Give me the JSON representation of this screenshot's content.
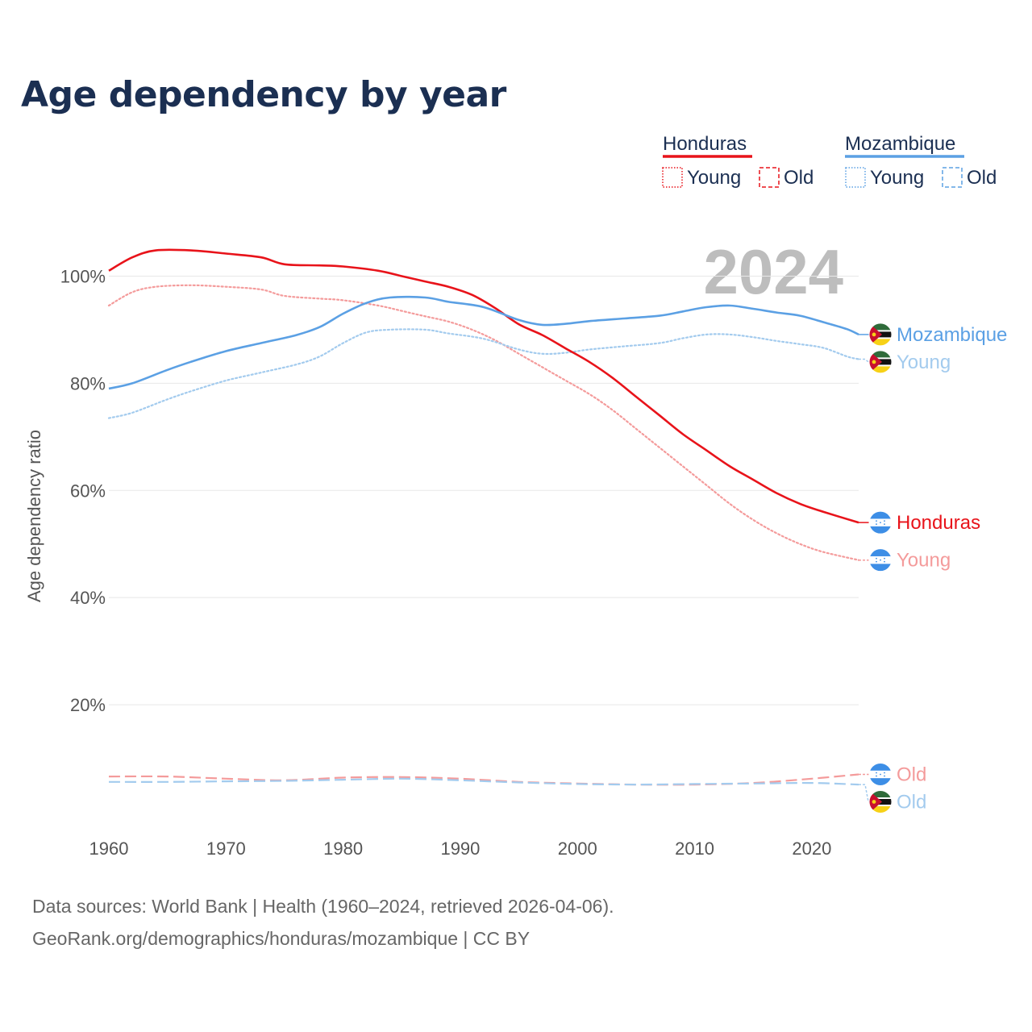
{
  "chart_data": {
    "type": "line",
    "title": "Age dependency by year",
    "xlabel": "",
    "ylabel": "Age dependency ratio",
    "xlim": [
      1960,
      2024
    ],
    "ylim": [
      0,
      110
    ],
    "y_ticks": [
      20,
      40,
      60,
      80,
      100
    ],
    "y_tick_labels": [
      "20%",
      "40%",
      "60%",
      "80%",
      "100%"
    ],
    "x_ticks": [
      1960,
      1970,
      1980,
      1990,
      2000,
      2010,
      2020
    ],
    "x_tick_labels": [
      "1960",
      "1970",
      "1980",
      "1990",
      "2000",
      "2010",
      "2020"
    ],
    "year_display": "2024",
    "grid": true,
    "legend_position": "top-right",
    "legend": [
      {
        "country": "Honduras",
        "color": "#e8131a",
        "items": [
          "Young",
          "Old"
        ]
      },
      {
        "country": "Mozambique",
        "color": "#5ba0e4",
        "items": [
          "Young",
          "Old"
        ]
      }
    ],
    "series": [
      {
        "name": "Honduras",
        "country": "Honduras",
        "kind": "Total",
        "end_label": "Honduras",
        "color": "#e8131a",
        "dash": "solid",
        "x": [
          1960,
          1962,
          1964,
          1967,
          1970,
          1973,
          1975,
          1978,
          1980,
          1983,
          1985,
          1987,
          1989,
          1991,
          1993,
          1995,
          1997,
          1999,
          2001,
          2003,
          2005,
          2007,
          2009,
          2011,
          2013,
          2015,
          2017,
          2019,
          2021,
          2024
        ],
        "values": [
          101,
          103.5,
          104.8,
          104.8,
          104.2,
          103.5,
          102.2,
          102,
          101.8,
          101,
          100,
          99,
          98,
          96.5,
          94,
          91,
          89,
          86.5,
          84,
          81,
          77.5,
          74,
          70.5,
          67.5,
          64.5,
          62,
          59.5,
          57.5,
          56,
          54
        ]
      },
      {
        "name": "Honduras Young",
        "country": "Honduras",
        "kind": "Young",
        "end_label": "Young",
        "color": "#f49b9b",
        "dash": "dotted",
        "x": [
          1960,
          1962,
          1964,
          1967,
          1970,
          1973,
          1975,
          1978,
          1980,
          1983,
          1985,
          1987,
          1989,
          1991,
          1993,
          1995,
          1997,
          1999,
          2001,
          2003,
          2005,
          2007,
          2009,
          2011,
          2013,
          2015,
          2017,
          2019,
          2021,
          2024
        ],
        "values": [
          94.5,
          97,
          98,
          98.3,
          98,
          97.5,
          96.3,
          95.8,
          95.5,
          94.5,
          93.5,
          92.5,
          91.5,
          90,
          88,
          85.5,
          83,
          80.5,
          78,
          75,
          71.5,
          68,
          64.5,
          61,
          57.5,
          54.5,
          52,
          50,
          48.5,
          47
        ]
      },
      {
        "name": "Honduras Old",
        "country": "Honduras",
        "kind": "Old",
        "end_label": "Old",
        "color": "#f49b9b",
        "dash": "dashed",
        "x": [
          1960,
          1965,
          1970,
          1975,
          1980,
          1985,
          1990,
          1995,
          2000,
          2005,
          2010,
          2015,
          2020,
          2024
        ],
        "values": [
          6.6,
          6.6,
          6.2,
          5.9,
          6.4,
          6.5,
          6.2,
          5.6,
          5.3,
          5.1,
          5.1,
          5.4,
          6.2,
          7
        ]
      },
      {
        "name": "Mozambique",
        "country": "Mozambique",
        "kind": "Total",
        "end_label": "Mozambique",
        "color": "#5ba0e4",
        "dash": "solid",
        "x": [
          1960,
          1962,
          1965,
          1967,
          1970,
          1973,
          1976,
          1978,
          1980,
          1982,
          1984,
          1987,
          1989,
          1992,
          1995,
          1997,
          1999,
          2001,
          2004,
          2007,
          2009,
          2011,
          2013,
          2015,
          2017,
          2019,
          2021,
          2023,
          2024
        ],
        "values": [
          79,
          80,
          82.5,
          84,
          86,
          87.5,
          89,
          90.5,
          93,
          95,
          96,
          96,
          95.2,
          94.2,
          91.8,
          90.9,
          91.1,
          91.6,
          92.1,
          92.6,
          93.4,
          94.2,
          94.5,
          93.9,
          93.2,
          92.6,
          91.4,
          90.1,
          89.1
        ]
      },
      {
        "name": "Mozambique Young",
        "country": "Mozambique",
        "kind": "Young",
        "end_label": "Young",
        "color": "#a3cbee",
        "dash": "dotted",
        "x": [
          1960,
          1962,
          1965,
          1967,
          1970,
          1973,
          1976,
          1978,
          1980,
          1982,
          1984,
          1987,
          1989,
          1992,
          1995,
          1997,
          1999,
          2001,
          2004,
          2007,
          2009,
          2011,
          2013,
          2015,
          2017,
          2019,
          2021,
          2023,
          2024
        ],
        "values": [
          73.5,
          74.5,
          77,
          78.5,
          80.5,
          82,
          83.5,
          85,
          87.5,
          89.5,
          90,
          90,
          89.3,
          88.3,
          86.3,
          85.5,
          85.7,
          86.3,
          86.9,
          87.5,
          88.4,
          89.1,
          89.1,
          88.6,
          87.9,
          87.3,
          86.6,
          85,
          84.5
        ]
      },
      {
        "name": "Mozambique Old",
        "country": "Mozambique",
        "kind": "Old",
        "end_label": "Old",
        "color": "#a3cbee",
        "dash": "dashed",
        "x": [
          1960,
          1965,
          1970,
          1975,
          1980,
          1985,
          1990,
          1995,
          2000,
          2005,
          2010,
          2015,
          2020,
          2024
        ],
        "values": [
          5.6,
          5.6,
          5.7,
          5.8,
          6,
          6.2,
          5.9,
          5.5,
          5.2,
          5.1,
          5.2,
          5.3,
          5.4,
          5.1
        ]
      }
    ]
  },
  "footer": {
    "sources": "Data sources: World Bank | Health (1960–2024, retrieved 2026-04-06).",
    "attribution": "GeoRank.org/demographics/honduras/mozambique | CC BY"
  }
}
